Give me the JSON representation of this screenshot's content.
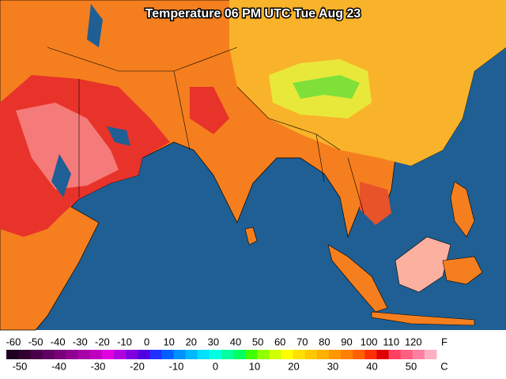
{
  "title": "Temperature 06 PM UTC Tue Aug 23",
  "legend": {
    "f_labels": [
      -60,
      -50,
      -40,
      -30,
      -20,
      -10,
      0,
      10,
      20,
      30,
      40,
      50,
      60,
      70,
      80,
      90,
      100,
      110,
      120
    ],
    "f_unit": "F",
    "c_labels": [
      -50,
      -40,
      -30,
      -20,
      -10,
      0,
      10,
      20,
      30,
      40,
      50
    ],
    "c_unit": "C",
    "colors": [
      "#200020",
      "#300030",
      "#48004a",
      "#600060",
      "#780078",
      "#900090",
      "#a800a8",
      "#c000c0",
      "#e000e0",
      "#b000e0",
      "#8000e0",
      "#5000e0",
      "#2030ff",
      "#0060ff",
      "#0090ff",
      "#00b8ff",
      "#00e0ff",
      "#00ffe0",
      "#00ffa0",
      "#00ff60",
      "#40ff00",
      "#90ff00",
      "#d0ff00",
      "#ffff00",
      "#ffe000",
      "#ffc800",
      "#ffb000",
      "#ff9800",
      "#ff8000",
      "#ff6000",
      "#ff3000",
      "#e00000",
      "#ff4060",
      "#ff6080",
      "#ff80a0",
      "#ffb0c0"
    ]
  }
}
